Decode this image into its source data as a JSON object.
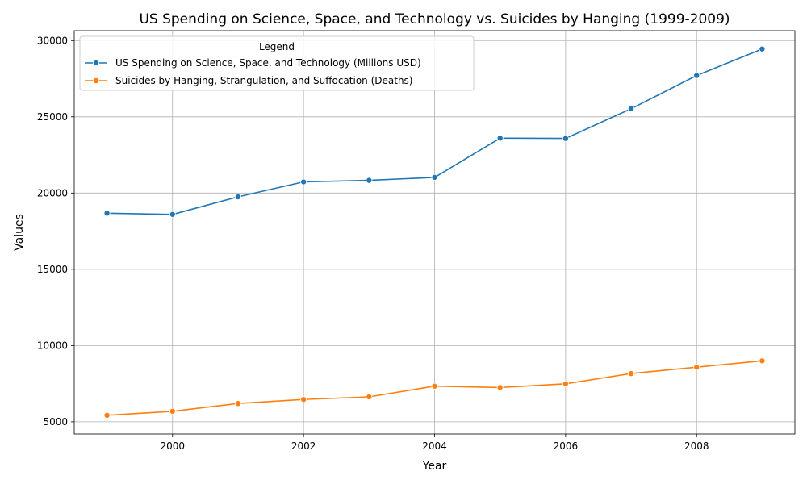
{
  "chart_data": {
    "type": "line",
    "title": "US Spending on Science, Space, and Technology vs. Suicides by Hanging (1999-2009)",
    "xlabel": "Year",
    "ylabel": "Values",
    "x": [
      1999,
      2000,
      2001,
      2002,
      2003,
      2004,
      2005,
      2006,
      2007,
      2008,
      2009
    ],
    "xlim": [
      1998.5,
      2009.5
    ],
    "ylim": [
      4200,
      30650
    ],
    "xticks": [
      2000,
      2002,
      2004,
      2006,
      2008
    ],
    "yticks": [
      5000,
      10000,
      15000,
      20000,
      25000,
      30000
    ],
    "grid": true,
    "legend": {
      "title": "Legend",
      "placement": "top-left"
    },
    "series": [
      {
        "name": "US Spending on Science, Space, and Technology (Millions USD)",
        "color": "#1f77b4",
        "marker": "circle",
        "values": [
          18679,
          18600,
          19750,
          20730,
          20830,
          21030,
          23600,
          23580,
          25530,
          27710,
          29450
        ]
      },
      {
        "name": "Suicides by Hanging, Strangulation, and Suffocation (Deaths)",
        "color": "#ff7f0e",
        "marker": "circle",
        "values": [
          5427,
          5688,
          6198,
          6462,
          6635,
          7336,
          7248,
          7491,
          8161,
          8578,
          9000
        ]
      }
    ]
  }
}
